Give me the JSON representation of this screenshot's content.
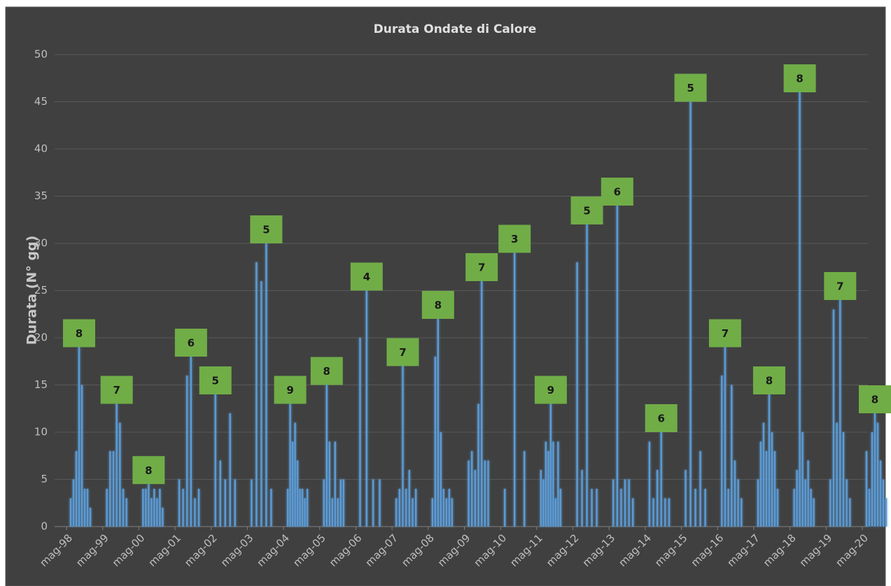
{
  "chart_data": {
    "type": "bar",
    "title": "Durata Ondate di Calore",
    "y_label": "Durata (N° gg)",
    "color": "#5b9bd5",
    "label_color": "#70ad47",
    "ylim": [
      0,
      50
    ],
    "yticks": [
      0,
      5,
      10,
      15,
      20,
      25,
      30,
      35,
      40,
      45,
      50
    ],
    "grid": true,
    "groups": [
      {
        "label": "mag-98",
        "count": 8,
        "values": [
          3,
          5,
          8,
          19,
          15,
          4,
          4,
          2
        ]
      },
      {
        "label": "mag-99",
        "count": 7,
        "values": [
          4,
          8,
          8,
          13,
          11,
          4,
          3
        ]
      },
      {
        "label": "mag-00",
        "count": 8,
        "values": [
          4,
          4,
          4.5,
          3,
          4,
          3,
          4,
          2
        ]
      },
      {
        "label": "mag-01",
        "count": 6,
        "values": [
          5,
          4,
          16,
          18,
          3,
          4
        ]
      },
      {
        "label": "mag-02",
        "count": 5,
        "values": [
          14,
          7,
          5,
          12,
          5
        ]
      },
      {
        "label": "mag-03",
        "count": 5,
        "values": [
          5,
          28,
          26,
          30,
          4
        ]
      },
      {
        "label": "mag-04",
        "count": 9,
        "values": [
          4,
          13,
          9,
          11,
          7,
          4,
          4,
          3,
          4
        ]
      },
      {
        "label": "mag-05",
        "count": 8,
        "values": [
          5,
          15,
          9,
          3,
          9,
          3,
          5,
          5
        ]
      },
      {
        "label": "mag-06",
        "count": 4,
        "values": [
          20,
          25,
          5,
          5
        ]
      },
      {
        "label": "mag-07",
        "count": 7,
        "values": [
          3,
          4,
          17,
          4,
          6,
          3,
          4
        ]
      },
      {
        "label": "mag-08",
        "count": 8,
        "values": [
          3,
          18,
          22,
          10,
          4,
          3,
          4,
          3
        ]
      },
      {
        "label": "mag-09",
        "count": 7,
        "values": [
          7,
          8,
          6,
          13,
          26,
          7,
          7
        ]
      },
      {
        "label": "mag-10",
        "count": 3,
        "values": [
          4,
          29,
          8
        ]
      },
      {
        "label": "mag-11",
        "count": 9,
        "values": [
          6,
          5,
          9,
          8,
          13,
          9,
          3,
          9,
          4
        ]
      },
      {
        "label": "mag-12",
        "count": 5,
        "values": [
          28,
          6,
          32,
          4,
          4
        ]
      },
      {
        "label": "mag-13",
        "count": 6,
        "values": [
          5,
          34,
          4,
          5,
          5,
          3
        ]
      },
      {
        "label": "mag-14",
        "count": 6,
        "values": [
          9,
          3,
          6,
          10,
          3,
          3
        ]
      },
      {
        "label": "mag-15",
        "count": 5,
        "values": [
          6,
          45,
          4,
          8,
          4
        ]
      },
      {
        "label": "mag-16",
        "count": 7,
        "values": [
          16,
          19,
          4,
          15,
          7,
          5,
          3
        ]
      },
      {
        "label": "mag-17",
        "count": 8,
        "values": [
          5,
          9,
          11,
          8,
          14,
          10,
          8,
          4
        ]
      },
      {
        "label": "mag-18",
        "count": 8,
        "values": [
          4,
          6,
          46,
          10,
          5,
          7,
          4,
          3
        ]
      },
      {
        "label": "mag-19",
        "count": 7,
        "values": [
          5,
          23,
          11,
          24,
          10,
          5,
          3
        ]
      },
      {
        "label": "mag-20",
        "count": 8,
        "values": [
          8,
          4,
          10,
          12,
          11,
          7,
          5,
          3
        ]
      }
    ]
  }
}
